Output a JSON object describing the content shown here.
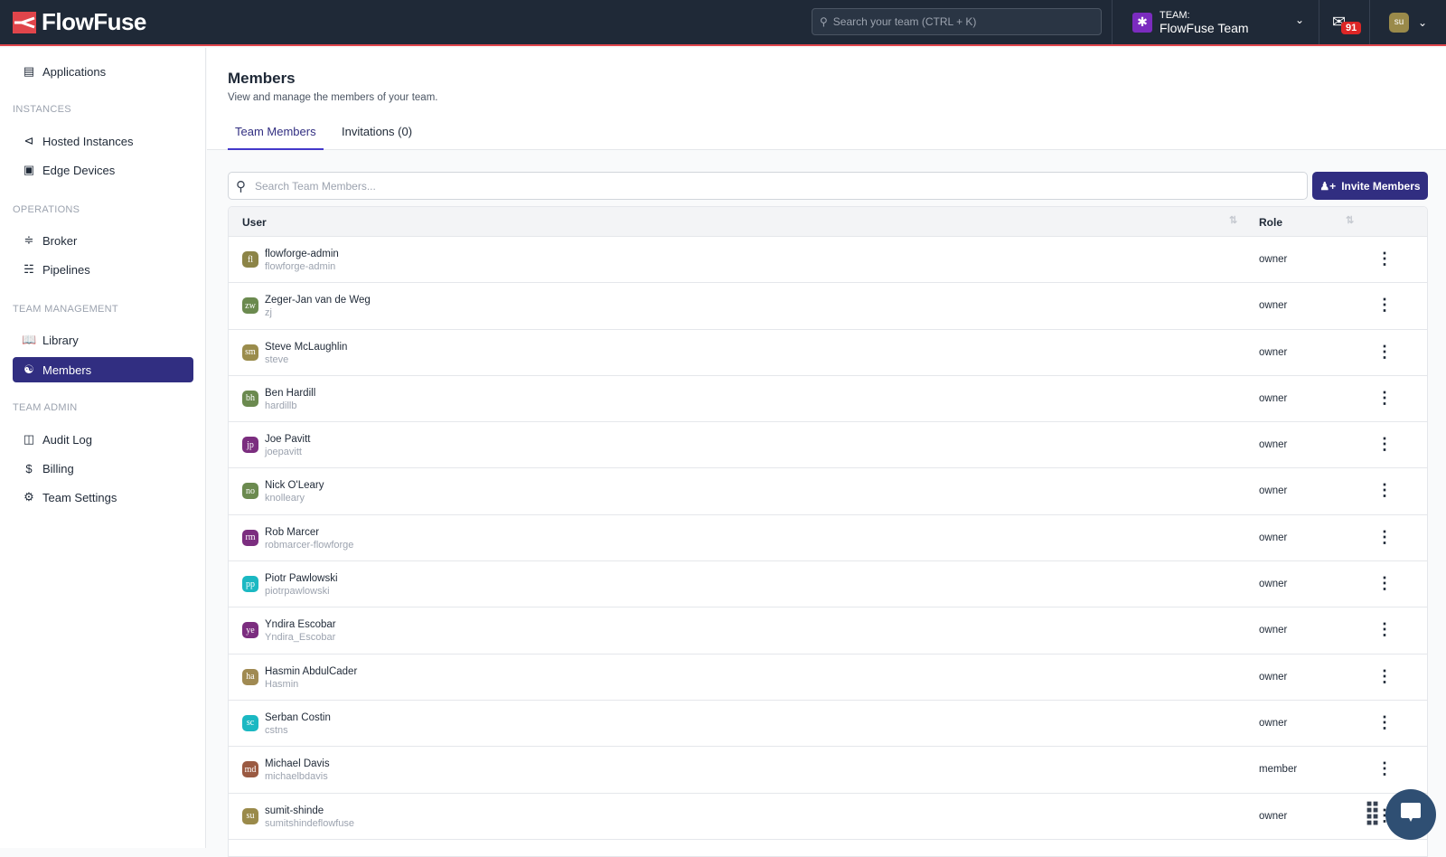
{
  "header": {
    "brand": "FlowFuse",
    "search_placeholder": "Search your team (CTRL + K)",
    "team_label": "TEAM:",
    "team_name": "FlowFuse Team",
    "notification_count": "91",
    "user_initials": "su"
  },
  "sidebar": {
    "top": [
      {
        "label": "Applications",
        "icon": "applications-icon"
      }
    ],
    "sections": [
      {
        "title": "INSTANCES",
        "items": [
          {
            "label": "Hosted Instances",
            "icon": "hosted-instances-icon"
          },
          {
            "label": "Edge Devices",
            "icon": "chip-icon"
          }
        ]
      },
      {
        "title": "OPERATIONS",
        "items": [
          {
            "label": "Broker",
            "icon": "rss-icon"
          },
          {
            "label": "Pipelines",
            "icon": "pipelines-icon"
          }
        ]
      },
      {
        "title": "TEAM MANAGEMENT",
        "items": [
          {
            "label": "Library",
            "icon": "book-icon"
          },
          {
            "label": "Members",
            "icon": "users-icon",
            "active": true
          }
        ]
      },
      {
        "title": "TEAM ADMIN",
        "items": [
          {
            "label": "Audit Log",
            "icon": "database-icon"
          },
          {
            "label": "Billing",
            "icon": "dollar-icon"
          },
          {
            "label": "Team Settings",
            "icon": "gear-icon"
          }
        ]
      }
    ]
  },
  "main": {
    "title": "Members",
    "subtitle": "View and manage the members of your team.",
    "tabs": [
      {
        "label": "Team Members",
        "active": true
      },
      {
        "label": "Invitations (0)"
      }
    ],
    "search_placeholder": "Search Team Members...",
    "invite_label": "Invite Members",
    "columns": [
      "User",
      "Role"
    ],
    "members": [
      {
        "initials": "fl",
        "name": "flowforge-admin",
        "username": "flowforge-admin",
        "role": "owner",
        "color": "#8c8447"
      },
      {
        "initials": "zw",
        "name": "Zeger-Jan van de Weg",
        "username": "zj",
        "role": "owner",
        "color": "#6b8a4f"
      },
      {
        "initials": "sm",
        "name": "Steve McLaughlin",
        "username": "steve",
        "role": "owner",
        "color": "#9a8c4c"
      },
      {
        "initials": "bh",
        "name": "Ben Hardill",
        "username": "hardillb",
        "role": "owner",
        "color": "#6b8a4f"
      },
      {
        "initials": "jp",
        "name": "Joe Pavitt",
        "username": "joepavitt",
        "role": "owner",
        "color": "#7b2d7f"
      },
      {
        "initials": "no",
        "name": "Nick O'Leary",
        "username": "knolleary",
        "role": "owner",
        "color": "#6b8a4f"
      },
      {
        "initials": "rm",
        "name": "Rob Marcer",
        "username": "robmarcer-flowforge",
        "role": "owner",
        "color": "#7b2d7f"
      },
      {
        "initials": "pp",
        "name": "Piotr Pawlowski",
        "username": "piotrpawlowski",
        "role": "owner",
        "color": "#1bb8c2"
      },
      {
        "initials": "ye",
        "name": "Yndira Escobar",
        "username": "Yndira_Escobar",
        "role": "owner",
        "color": "#7b2d7f"
      },
      {
        "initials": "ha",
        "name": "Hasmin AbdulCader",
        "username": "Hasmin",
        "role": "owner",
        "color": "#a08a52"
      },
      {
        "initials": "sc",
        "name": "Serban Costin",
        "username": "cstns",
        "role": "owner",
        "color": "#1bb8c2"
      },
      {
        "initials": "md",
        "name": "Michael Davis",
        "username": "michaelbdavis",
        "role": "member",
        "color": "#9a5a42"
      },
      {
        "initials": "su",
        "name": "sumit-shinde",
        "username": "sumitshindeflowfuse",
        "role": "owner",
        "color": "#9a8a4a"
      }
    ]
  },
  "colors": {
    "header_bg": "#1f2937",
    "accent": "#312e81",
    "brand_red": "#e0454b"
  }
}
